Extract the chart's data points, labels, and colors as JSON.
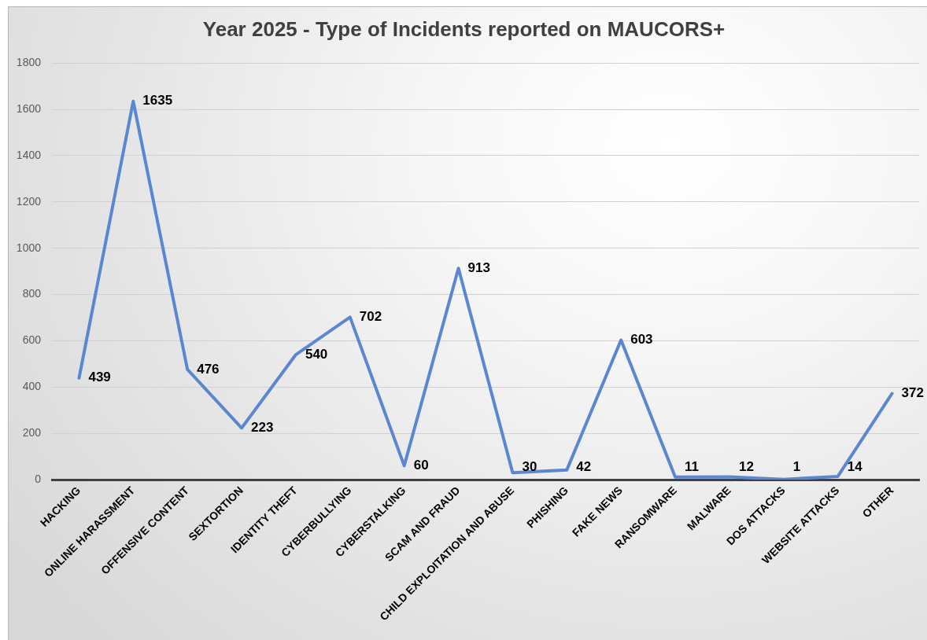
{
  "chart_data": {
    "type": "line",
    "title": "Year 2025 - Type of Incidents reported on MAUCORS+",
    "categories": [
      "HACKING",
      "ONLINE HARASSMENT",
      "OFFENSIVE CONTENT",
      "SEXTORTION",
      "IDENTITY THEFT",
      "CYBERBULLYING",
      "CYBERSTALKING",
      "SCAM AND FRAUD",
      "CHILD EXPLOITATION AND ABUSE",
      "PHISHING",
      "FAKE NEWS",
      "RANSOMWARE",
      "MALWARE",
      "DOS ATTACKS",
      "WEBSITE ATTACKS",
      "OTHER"
    ],
    "series": [
      {
        "color": "#5b87d0",
        "values": [
          439,
          1635,
          476,
          223,
          540,
          702,
          60,
          913,
          30,
          42,
          603,
          11,
          12,
          1,
          14,
          372
        ]
      }
    ],
    "ylim": [
      0,
      1800
    ],
    "yticks": [
      0,
      200,
      400,
      600,
      800,
      1000,
      1200,
      1400,
      1600,
      1800
    ],
    "grid": "y",
    "legend": false,
    "marker": "none",
    "line_style": "solid",
    "data_labels": true
  }
}
